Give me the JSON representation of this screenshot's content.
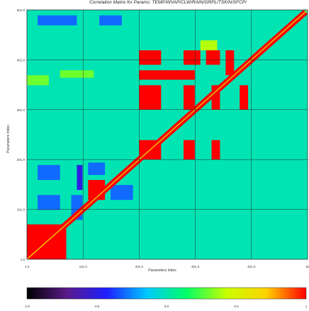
{
  "chart_data": {
    "type": "heatmap",
    "title": "Correlation Matrix for Params: TEMP/WVAP/CLW/RAIN/GRPL/TSKIN/SFCP/",
    "xlabel": "Parameters Index",
    "ylabel": "Parameters Index",
    "x_ticks": [
      "1.0",
      "101.0",
      "201.0",
      "301.0",
      "401.0",
      "50"
    ],
    "y_ticks": [
      "1.0",
      "101.0",
      "201.0",
      "301.0",
      "401.0",
      "501.0"
    ],
    "xlim": [
      1,
      501
    ],
    "ylim": [
      1,
      501
    ],
    "colorbar": {
      "ticks": [
        "-1.0",
        "-0.5",
        "0.0",
        "0.5",
        "1"
      ],
      "range": [
        -1,
        1
      ],
      "colors": [
        "#000000",
        "#5a1a8a",
        "#1e1eff",
        "#00c8ff",
        "#00ff66",
        "#c8ff00",
        "#ffd200",
        "#ff0000"
      ]
    },
    "blocks": [
      {
        "x0": 1,
        "x1": 71,
        "y0": 1,
        "y1": 71,
        "value": 1.0
      },
      {
        "x0": 110,
        "x1": 140,
        "y0": 120,
        "y1": 160,
        "value": 1.0
      },
      {
        "x0": 110,
        "x1": 140,
        "y0": 170,
        "y1": 195,
        "value": -0.3
      },
      {
        "x0": 150,
        "x1": 190,
        "y0": 120,
        "y1": 150,
        "value": -0.3
      },
      {
        "x0": 201,
        "x1": 240,
        "y0": 201,
        "y1": 240,
        "value": 1.0
      },
      {
        "x0": 201,
        "x1": 240,
        "y0": 301,
        "y1": 350,
        "value": 1.0
      },
      {
        "x0": 201,
        "x1": 240,
        "y0": 391,
        "y1": 420,
        "value": 1.0
      },
      {
        "x0": 280,
        "x1": 300,
        "y0": 201,
        "y1": 240,
        "value": 1.0
      },
      {
        "x0": 280,
        "x1": 300,
        "y0": 301,
        "y1": 350,
        "value": 1.0
      },
      {
        "x0": 280,
        "x1": 310,
        "y0": 391,
        "y1": 420,
        "value": 1.0
      },
      {
        "x0": 330,
        "x1": 345,
        "y0": 201,
        "y1": 240,
        "value": 1.0
      },
      {
        "x0": 330,
        "x1": 345,
        "y0": 301,
        "y1": 350,
        "value": 1.0
      },
      {
        "x0": 320,
        "x1": 345,
        "y0": 391,
        "y1": 420,
        "value": 1.0
      },
      {
        "x0": 355,
        "x1": 370,
        "y0": 370,
        "y1": 420,
        "value": 1.0
      },
      {
        "x0": 380,
        "x1": 395,
        "y0": 301,
        "y1": 350,
        "value": 1.0
      },
      {
        "x0": 201,
        "x1": 300,
        "y0": 361,
        "y1": 380,
        "value": 1.0
      },
      {
        "x0": 310,
        "x1": 340,
        "y0": 420,
        "y1": 440,
        "value": 0.4
      },
      {
        "x0": 20,
        "x1": 90,
        "y0": 470,
        "y1": 490,
        "value": -0.3
      },
      {
        "x0": 130,
        "x1": 170,
        "y0": 470,
        "y1": 490,
        "value": -0.3
      },
      {
        "x0": 20,
        "x1": 60,
        "y0": 160,
        "y1": 190,
        "value": -0.3
      },
      {
        "x0": 20,
        "x1": 60,
        "y0": 100,
        "y1": 130,
        "value": -0.3
      },
      {
        "x0": 80,
        "x1": 100,
        "y0": 80,
        "y1": 130,
        "value": -0.3
      },
      {
        "x0": 90,
        "x1": 100,
        "y0": 140,
        "y1": 190,
        "value": -0.5
      },
      {
        "x0": 1,
        "x1": 40,
        "y0": 350,
        "y1": 370,
        "value": 0.3
      },
      {
        "x0": 60,
        "x1": 120,
        "y0": 365,
        "y1": 380,
        "value": 0.3
      }
    ],
    "diagonal": {
      "value": 1.0,
      "background": 0.0
    }
  }
}
